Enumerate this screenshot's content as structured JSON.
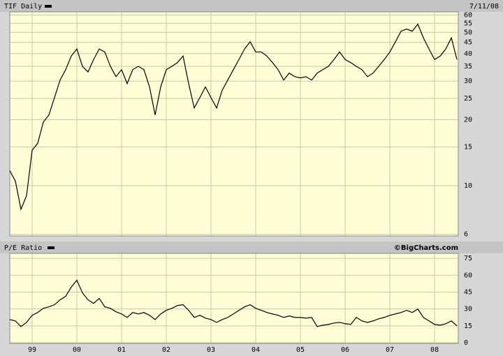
{
  "chart_data": [
    {
      "type": "line",
      "title": "TIF Daily",
      "date_label": "7/11/08",
      "color": "#000000",
      "log_scale": true,
      "grid": true,
      "x": [
        1998.5,
        1998.625,
        1998.75,
        1998.875,
        1999,
        1999.125,
        1999.25,
        1999.375,
        1999.5,
        1999.625,
        1999.75,
        1999.875,
        2000,
        2000.125,
        2000.25,
        2000.375,
        2000.5,
        2000.625,
        2000.75,
        2000.875,
        2001,
        2001.125,
        2001.25,
        2001.375,
        2001.5,
        2001.625,
        2001.75,
        2001.875,
        2002,
        2002.125,
        2002.25,
        2002.375,
        2002.5,
        2002.625,
        2002.75,
        2002.875,
        2003,
        2003.125,
        2003.25,
        2003.375,
        2003.5,
        2003.625,
        2003.75,
        2003.875,
        2004,
        2004.125,
        2004.25,
        2004.375,
        2004.5,
        2004.625,
        2004.75,
        2004.875,
        2005,
        2005.125,
        2005.25,
        2005.375,
        2005.5,
        2005.625,
        2005.75,
        2005.875,
        2006,
        2006.125,
        2006.25,
        2006.375,
        2006.5,
        2006.625,
        2006.75,
        2006.875,
        2007,
        2007.125,
        2007.25,
        2007.375,
        2007.5,
        2007.625,
        2007.75,
        2007.875,
        2008,
        2008.125,
        2008.25,
        2008.375,
        2008.5
      ],
      "values": [
        11.7,
        10.5,
        7.8,
        9.0,
        14.5,
        15.6,
        19.5,
        21,
        25.2,
        30.3,
        33.8,
        39,
        42,
        35,
        33,
        37.6,
        42,
        40.7,
        35,
        31.4,
        33.8,
        29.2,
        33.8,
        35,
        33.8,
        28.2,
        21,
        28.2,
        33.8,
        35,
        36.4,
        39,
        29.2,
        22.6,
        25.2,
        28.2,
        25.2,
        22.6,
        27.2,
        30.3,
        33.8,
        37.6,
        42,
        45.3,
        40.7,
        40.7,
        39,
        36.4,
        33.8,
        30.3,
        32.6,
        31.4,
        31,
        31.4,
        30.3,
        32.6,
        33.8,
        35,
        37.6,
        40.7,
        37.6,
        36.4,
        35,
        33.8,
        31.4,
        32.6,
        35,
        37.6,
        40.7,
        45.3,
        50.6,
        51.8,
        50.6,
        54.5,
        47.2,
        42,
        37.6,
        39,
        42,
        47.2,
        37.6
      ],
      "xlim": [
        1998.5,
        2008.53
      ],
      "xticks": [
        1999,
        2000,
        2001,
        2002,
        2003,
        2004,
        2005,
        2006,
        2007,
        2008
      ],
      "ylim": [
        5.9,
        62
      ],
      "yticks": [
        6,
        10,
        15,
        20,
        25,
        30,
        35,
        40,
        45,
        50,
        55,
        60
      ]
    },
    {
      "type": "line",
      "title": "P/E Ratio",
      "credit": "©BigCharts.com",
      "color": "#000000",
      "log_scale": false,
      "grid": true,
      "x": [
        1998.5,
        1998.625,
        1998.75,
        1998.875,
        1999,
        1999.125,
        1999.25,
        1999.375,
        1999.5,
        1999.625,
        1999.75,
        1999.875,
        2000,
        2000.125,
        2000.25,
        2000.375,
        2000.5,
        2000.625,
        2000.75,
        2000.875,
        2001,
        2001.125,
        2001.25,
        2001.375,
        2001.5,
        2001.625,
        2001.75,
        2001.875,
        2002,
        2002.125,
        2002.25,
        2002.375,
        2002.5,
        2002.625,
        2002.75,
        2002.875,
        2003,
        2003.125,
        2003.25,
        2003.375,
        2003.5,
        2003.625,
        2003.75,
        2003.875,
        2004,
        2004.125,
        2004.25,
        2004.375,
        2004.5,
        2004.625,
        2004.75,
        2004.875,
        2005,
        2005.125,
        2005.25,
        2005.375,
        2005.5,
        2005.625,
        2005.75,
        2005.875,
        2006,
        2006.125,
        2006.25,
        2006.375,
        2006.5,
        2006.625,
        2006.75,
        2006.875,
        2007,
        2007.125,
        2007.25,
        2007.375,
        2007.5,
        2007.625,
        2007.75,
        2007.875,
        2008,
        2008.125,
        2008.25,
        2008.375,
        2008.5
      ],
      "values": [
        20.6,
        19.4,
        14.4,
        18.1,
        24.4,
        26.9,
        30.6,
        31.9,
        33.8,
        38.1,
        41.3,
        49.4,
        55.6,
        44.4,
        38.1,
        35,
        39.4,
        31.9,
        30.6,
        27.5,
        25.6,
        22.5,
        26.9,
        25.6,
        26.9,
        24.4,
        20.6,
        25.6,
        28.8,
        30.6,
        33.1,
        33.8,
        28.8,
        22.5,
        24.4,
        21.9,
        20.6,
        18.1,
        20.6,
        22.5,
        25.6,
        28.8,
        31.9,
        33.8,
        30.6,
        28.8,
        26.9,
        25.6,
        24.4,
        22.5,
        23.8,
        22.5,
        22.5,
        21.9,
        22.5,
        14.4,
        15.6,
        16.3,
        17.5,
        18.1,
        16.9,
        16.3,
        22.5,
        19.4,
        18.1,
        19.4,
        21.3,
        22.5,
        24.4,
        25.6,
        26.9,
        28.8,
        26.9,
        30,
        22.5,
        19.4,
        16.3,
        15.6,
        16.9,
        19.4,
        15
      ],
      "xlim": [
        1998.5,
        2008.53
      ],
      "xticks": [
        {
          "value": 1999,
          "label": "99"
        },
        {
          "value": 2000,
          "label": "00"
        },
        {
          "value": 2001,
          "label": "01"
        },
        {
          "value": 2002,
          "label": "02"
        },
        {
          "value": 2003,
          "label": "03"
        },
        {
          "value": 2004,
          "label": "04"
        },
        {
          "value": 2005,
          "label": "05"
        },
        {
          "value": 2006,
          "label": "06"
        },
        {
          "value": 2007,
          "label": "07"
        },
        {
          "value": 2008,
          "label": "08"
        }
      ],
      "ylim": [
        -0.6,
        79.4
      ],
      "yticks": [
        0,
        15,
        30,
        45,
        60,
        75
      ]
    }
  ]
}
